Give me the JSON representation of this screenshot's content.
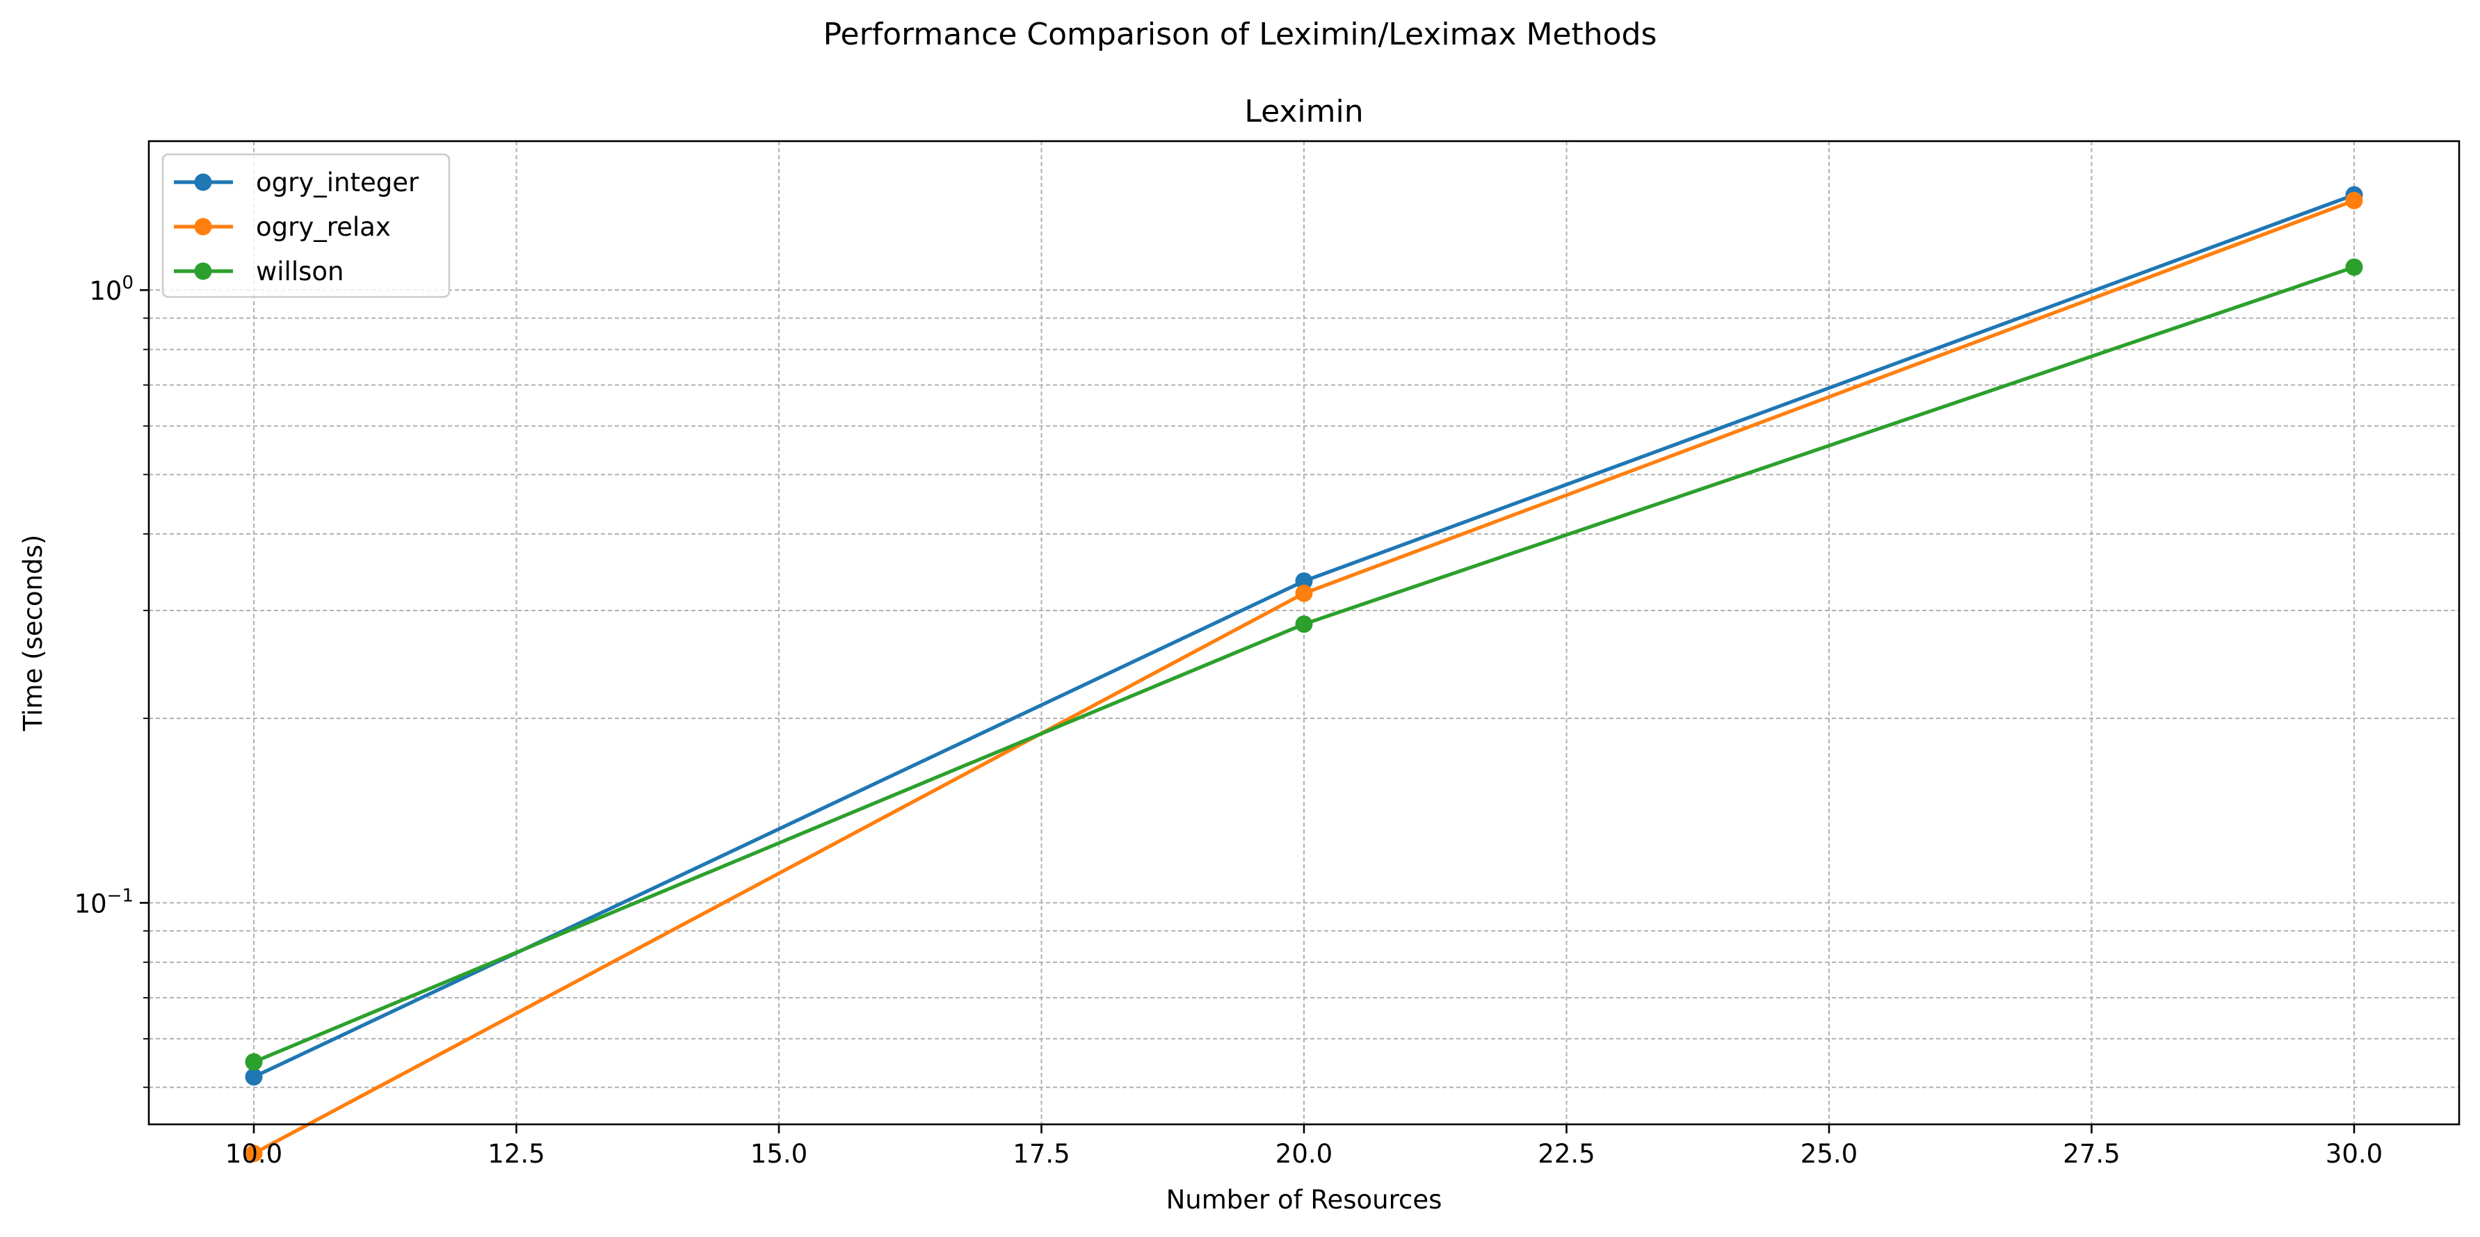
{
  "figure": {
    "suptitle": "Performance Comparison of Leximin/Leximax Methods"
  },
  "chart_data": {
    "type": "line",
    "title": "Leximin",
    "xlabel": "Number of Resources",
    "ylabel": "Time (seconds)",
    "x": [
      10,
      20,
      30
    ],
    "xlim": [
      9,
      31
    ],
    "xticks": [
      10.0,
      12.5,
      15.0,
      17.5,
      20.0,
      22.5,
      25.0,
      27.5,
      30.0
    ],
    "xtick_labels": [
      "10.0",
      "12.5",
      "15.0",
      "17.5",
      "20.0",
      "22.5",
      "25.0",
      "27.5",
      "30.0"
    ],
    "yscale": "log",
    "ylim": [
      0.0435,
      1.75
    ],
    "yticks": [
      {
        "value": 0.1,
        "base": "10",
        "exp": "−1"
      },
      {
        "value": 1.0,
        "base": "10",
        "exp": "0"
      }
    ],
    "grid": true,
    "legend_position": "upper left",
    "series": [
      {
        "name": "ogry_integer",
        "color": "#1f77b4",
        "values": [
          0.052,
          0.335,
          1.43
        ]
      },
      {
        "name": "ogry_relax",
        "color": "#ff7f0e",
        "values": [
          0.039,
          0.32,
          1.4
        ]
      },
      {
        "name": "willson",
        "color": "#2ca02c",
        "values": [
          0.055,
          0.285,
          1.09
        ]
      }
    ]
  }
}
